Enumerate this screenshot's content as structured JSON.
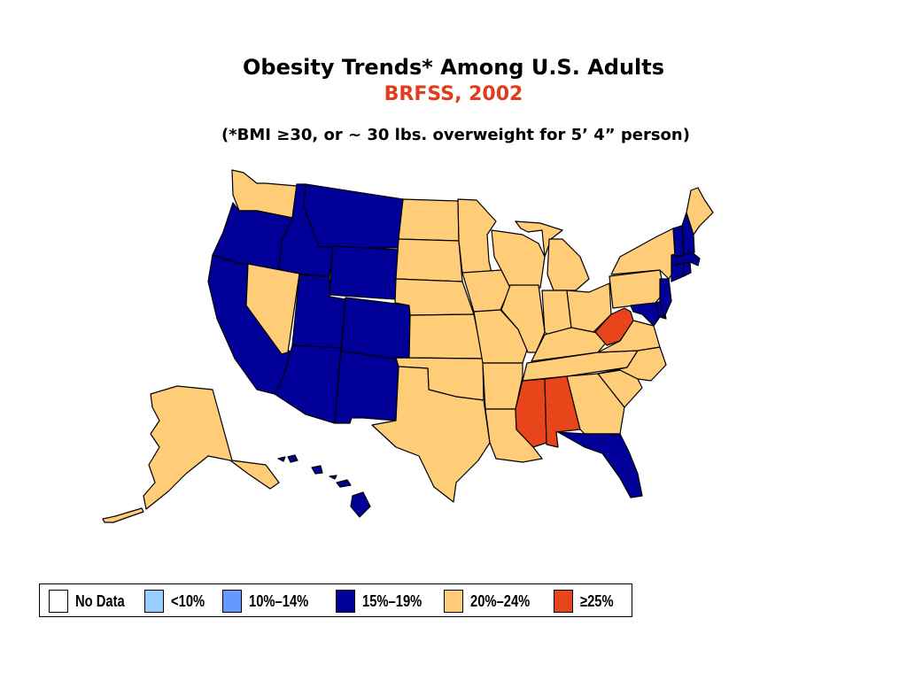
{
  "title": "Obesity Trends* Among U.S. Adults",
  "subtitle": "BRFSS, 2002",
  "note": "(*BMI ≥30, or ~ 30 lbs. overweight for 5’ 4” person)",
  "colors": {
    "no_data": "#ffffff",
    "lt10": "#99ccff",
    "c10_14": "#6699ff",
    "c15_19": "#000099",
    "c20_24": "#ffcc77",
    "ge25": "#e8451a",
    "title_accent": "#e03c1e"
  },
  "legend": [
    {
      "label": "No Data",
      "category": "no_data"
    },
    {
      "label": "<10%",
      "category": "lt10"
    },
    {
      "label": "10%–14%",
      "category": "c10_14"
    },
    {
      "label": "15%–19%",
      "category": "c15_19"
    },
    {
      "label": "20%–24%",
      "category": "c20_24"
    },
    {
      "label": "≥25%",
      "category": "ge25"
    }
  ],
  "states": {
    "WA": "c20_24",
    "OR": "c15_19",
    "CA": "c15_19",
    "ID": "c15_19",
    "NV": "c20_24",
    "MT": "c15_19",
    "WY": "c15_19",
    "UT": "c15_19",
    "AZ": "c15_19",
    "CO": "c15_19",
    "NM": "c15_19",
    "ND": "c20_24",
    "SD": "c20_24",
    "NE": "c20_24",
    "KS": "c20_24",
    "OK": "c20_24",
    "TX": "c20_24",
    "MN": "c20_24",
    "IA": "c20_24",
    "MO": "c20_24",
    "AR": "c20_24",
    "LA": "c20_24",
    "WI": "c20_24",
    "IL": "c20_24",
    "MI": "c20_24",
    "IN": "c20_24",
    "OH": "c20_24",
    "KY": "c20_24",
    "TN": "c20_24",
    "MS": "ge25",
    "AL": "ge25",
    "GA": "c20_24",
    "FL": "c15_19",
    "SC": "c20_24",
    "NC": "c20_24",
    "VA": "c20_24",
    "WV": "ge25",
    "MD": "c15_19",
    "DE": "c15_19",
    "NJ": "c15_19",
    "PA": "c20_24",
    "NY": "c20_24",
    "CT": "c15_19",
    "RI": "c15_19",
    "MA": "c15_19",
    "VT": "c15_19",
    "NH": "c15_19",
    "ME": "c20_24",
    "AK": "c20_24",
    "HI": "c15_19"
  }
}
